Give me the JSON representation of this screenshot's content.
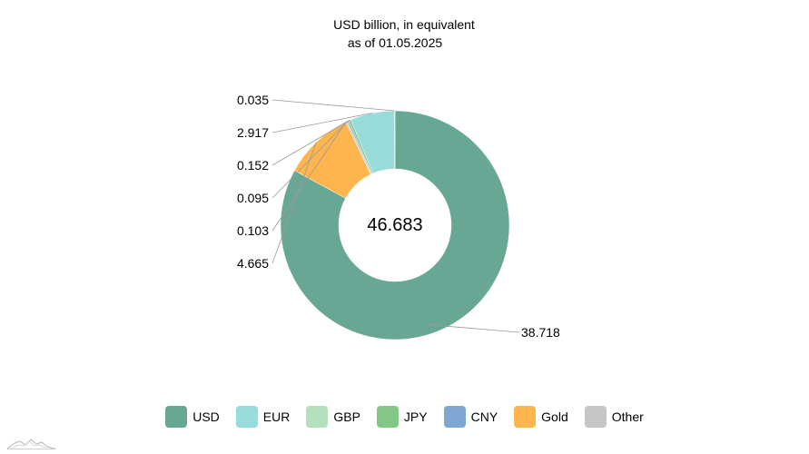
{
  "chart_data": {
    "type": "pie",
    "title": "USD billion, in equivalent",
    "subtitle": "as of 01.05.2025",
    "total_label": "46.683",
    "slices": [
      {
        "name": "USD",
        "value": 38.718,
        "label": "38.718",
        "color": "#69a795"
      },
      {
        "name": "Gold",
        "value": 4.665,
        "label": "4.665",
        "color": "#ffb54d"
      },
      {
        "name": "Other",
        "value": 0.103,
        "label": "0.103",
        "color": "#c6c6c6"
      },
      {
        "name": "CNY",
        "value": 0.095,
        "label": "0.095",
        "color": "#7fa6d1"
      },
      {
        "name": "JPY",
        "value": 0.152,
        "label": "0.152",
        "color": "#82c785"
      },
      {
        "name": "EUR",
        "value": 2.917,
        "label": "2.917",
        "color": "#97dcdb"
      },
      {
        "name": "GBP",
        "value": 0.035,
        "label": "0.035",
        "color": "#b5e0bd"
      }
    ],
    "legend": [
      {
        "name": "USD",
        "color": "#69a795"
      },
      {
        "name": "EUR",
        "color": "#97dcdb"
      },
      {
        "name": "GBP",
        "color": "#b5e0bd"
      },
      {
        "name": "JPY",
        "color": "#82c785"
      },
      {
        "name": "CNY",
        "color": "#7fa6d1"
      },
      {
        "name": "Gold",
        "color": "#ffb54d"
      },
      {
        "name": "Other",
        "color": "#c6c6c6"
      }
    ],
    "legend_position": "bottom",
    "chart_style": "donut"
  }
}
